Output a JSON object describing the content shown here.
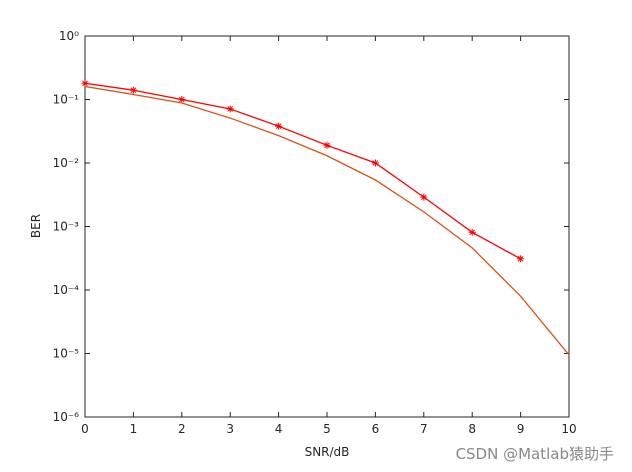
{
  "chart_data": {
    "type": "line",
    "xlabel": "SNR/dB",
    "ylabel": "BER",
    "xlim": [
      0,
      10
    ],
    "xticks": [
      0,
      1,
      2,
      3,
      4,
      5,
      6,
      7,
      8,
      9,
      10
    ],
    "ylim": [
      1e-06,
      1
    ],
    "log_y": true,
    "yticks": [
      {
        "value": 1e-06,
        "label": "10⁻⁶"
      },
      {
        "value": 1e-05,
        "label": "10⁻⁵"
      },
      {
        "value": 0.0001,
        "label": "10⁻⁴"
      },
      {
        "value": 0.001,
        "label": "10⁻³"
      },
      {
        "value": 0.01,
        "label": "10⁻²"
      },
      {
        "value": 0.1,
        "label": "10⁻¹"
      },
      {
        "value": 1,
        "label": "10⁰"
      }
    ],
    "grid": false,
    "series": [
      {
        "color": "#ff0000",
        "marker": "*",
        "x": [
          0,
          1,
          2,
          3,
          4,
          5,
          6,
          7,
          8,
          9
        ],
        "values": [
          0.18,
          0.14,
          0.1,
          0.071,
          0.038,
          0.019,
          0.01,
          0.0029,
          0.00081,
          0.00031
        ]
      },
      {
        "color": "#d95319",
        "marker": null,
        "x": [
          0,
          1,
          2,
          3,
          4,
          5,
          6,
          7,
          8,
          9,
          10
        ],
        "values": [
          0.16,
          0.12,
          0.088,
          0.051,
          0.027,
          0.013,
          0.0054,
          0.0017,
          0.00046,
          8e-05,
          9.5e-06
        ]
      }
    ],
    "annotation": "CSDN @Matlab猿助手"
  }
}
